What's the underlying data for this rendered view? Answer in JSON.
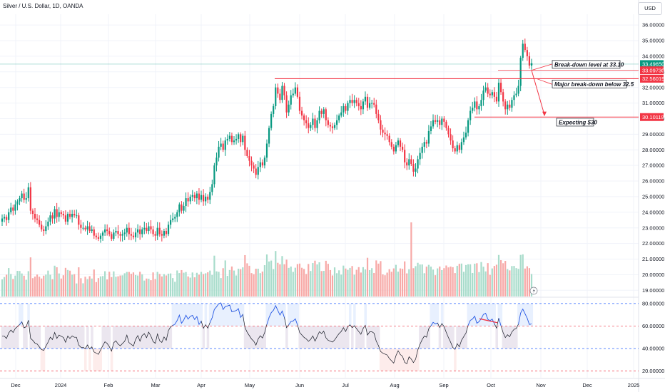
{
  "header": {
    "title": "Silver / U.S. Dollar, 1D, OANDA",
    "currency": "USD"
  },
  "chart_data": {
    "type": "candlestick",
    "symbol": "XAGUSD",
    "price_axis": {
      "ylim": [
        18.6,
        36.6
      ],
      "ticks": [
        "36.00000",
        "35.00000",
        "34.00000",
        "33.00000",
        "32.00000",
        "31.00000",
        "30.00000",
        "29.00000",
        "28.00000",
        "27.00000",
        "26.00000",
        "25.00000",
        "24.00000",
        "23.00000",
        "22.00000",
        "21.00000",
        "20.00000",
        "19.00000"
      ]
    },
    "rsi_axis": {
      "ylim": [
        14,
        85
      ],
      "ticks": [
        "80.00000",
        "60.00000",
        "40.00000",
        "20.00000"
      ],
      "levels": [
        80,
        60,
        40,
        20
      ]
    },
    "time_axis": {
      "labels": [
        "Dec",
        "2024",
        "Feb",
        "Mar",
        "Apr",
        "May",
        "Jun",
        "Jul",
        "Aug",
        "Sep",
        "Oct",
        "Nov",
        "Dec",
        "2025"
      ]
    },
    "price_labels": [
      {
        "text": "33.49650",
        "value": 33.4965,
        "color": "#089981"
      },
      {
        "text": "33.09730",
        "value": 33.0973,
        "color": "#f23645"
      },
      {
        "text": "32.56019",
        "value": 32.56019,
        "color": "#f23645"
      },
      {
        "text": "30.10119",
        "value": 30.10119,
        "color": "#f23645"
      }
    ],
    "annotations": {
      "breakdown": "Break-down level at 33.10",
      "major": "Major break-down below 32.5",
      "expect": "Expecting $30"
    },
    "closes": [
      23.6,
      23.7,
      23.5,
      24.0,
      24.3,
      24.1,
      24.5,
      24.7,
      24.9,
      25.2,
      24.8,
      24.9,
      25.6,
      24.1,
      23.9,
      23.6,
      23.5,
      23.2,
      22.9,
      22.8,
      23.1,
      23.4,
      23.8,
      23.6,
      24.2,
      23.7,
      24.0,
      23.9,
      23.8,
      23.4,
      23.9,
      23.7,
      23.9,
      23.8,
      23.8,
      23.2,
      23.0,
      23.0,
      22.9,
      23.1,
      22.8,
      22.9,
      22.5,
      22.4,
      22.3,
      22.5,
      22.7,
      22.9,
      22.8,
      22.6,
      22.3,
      22.7,
      22.8,
      22.6,
      22.5,
      22.6,
      22.7,
      23.0,
      22.6,
      22.5,
      22.4,
      22.7,
      22.9,
      22.6,
      22.9,
      23.0,
      22.8,
      23.1,
      22.9,
      22.6,
      22.5,
      23.0,
      22.6,
      22.5,
      22.8,
      22.6,
      23.2,
      23.5,
      23.6,
      23.7,
      24.0,
      24.5,
      24.1,
      24.4,
      24.9,
      24.7,
      25.0,
      25.1,
      24.9,
      25.2,
      24.8,
      25.1,
      24.7,
      25.0,
      24.8,
      25.3,
      25.8,
      27.0,
      27.5,
      28.2,
      28.4,
      28.0,
      28.6,
      28.7,
      28.9,
      28.5,
      28.6,
      28.7,
      29.0,
      28.5,
      28.9,
      28.0,
      27.6,
      27.3,
      27.0,
      26.8,
      26.4,
      26.9,
      27.2,
      27.0,
      27.5,
      28.4,
      29.4,
      30.3,
      30.8,
      32.0,
      31.6,
      31.2,
      32.1,
      31.5,
      30.4,
      30.9,
      31.5,
      31.6,
      32.0,
      31.4,
      30.5,
      30.2,
      29.9,
      29.7,
      29.4,
      29.6,
      30.0,
      29.4,
      29.9,
      30.5,
      30.3,
      30.6,
      29.9,
      29.6,
      29.5,
      29.4,
      29.6,
      29.9,
      30.2,
      30.4,
      30.8,
      30.5,
      31.0,
      31.2,
      31.0,
      31.2,
      31.0,
      30.8,
      30.6,
      31.1,
      31.4,
      30.7,
      31.0,
      31.0,
      30.9,
      30.3,
      29.9,
      29.3,
      29.1,
      29.0,
      28.9,
      28.5,
      28.2,
      27.9,
      28.3,
      28.6,
      28.2,
      28.0,
      27.2,
      27.0,
      27.4,
      27.1,
      26.6,
      26.8,
      27.4,
      27.8,
      28.2,
      28.5,
      28.4,
      29.2,
      29.5,
      29.9,
      29.8,
      29.9,
      29.6,
      30.0,
      29.8,
      29.4,
      29.0,
      28.6,
      28.1,
      27.9,
      28.3,
      28.0,
      28.5,
      28.8,
      29.1,
      29.9,
      30.5,
      30.7,
      31.1,
      30.6,
      30.8,
      31.2,
      31.8,
      32.0,
      31.6,
      31.5,
      31.7,
      31.4,
      31.1,
      32.3,
      31.7,
      31.1,
      30.6,
      30.9,
      30.7,
      31.2,
      31.5,
      31.6,
      32.1,
      33.9,
      34.8,
      34.4,
      34.0,
      33.4,
      33.5
    ]
  }
}
